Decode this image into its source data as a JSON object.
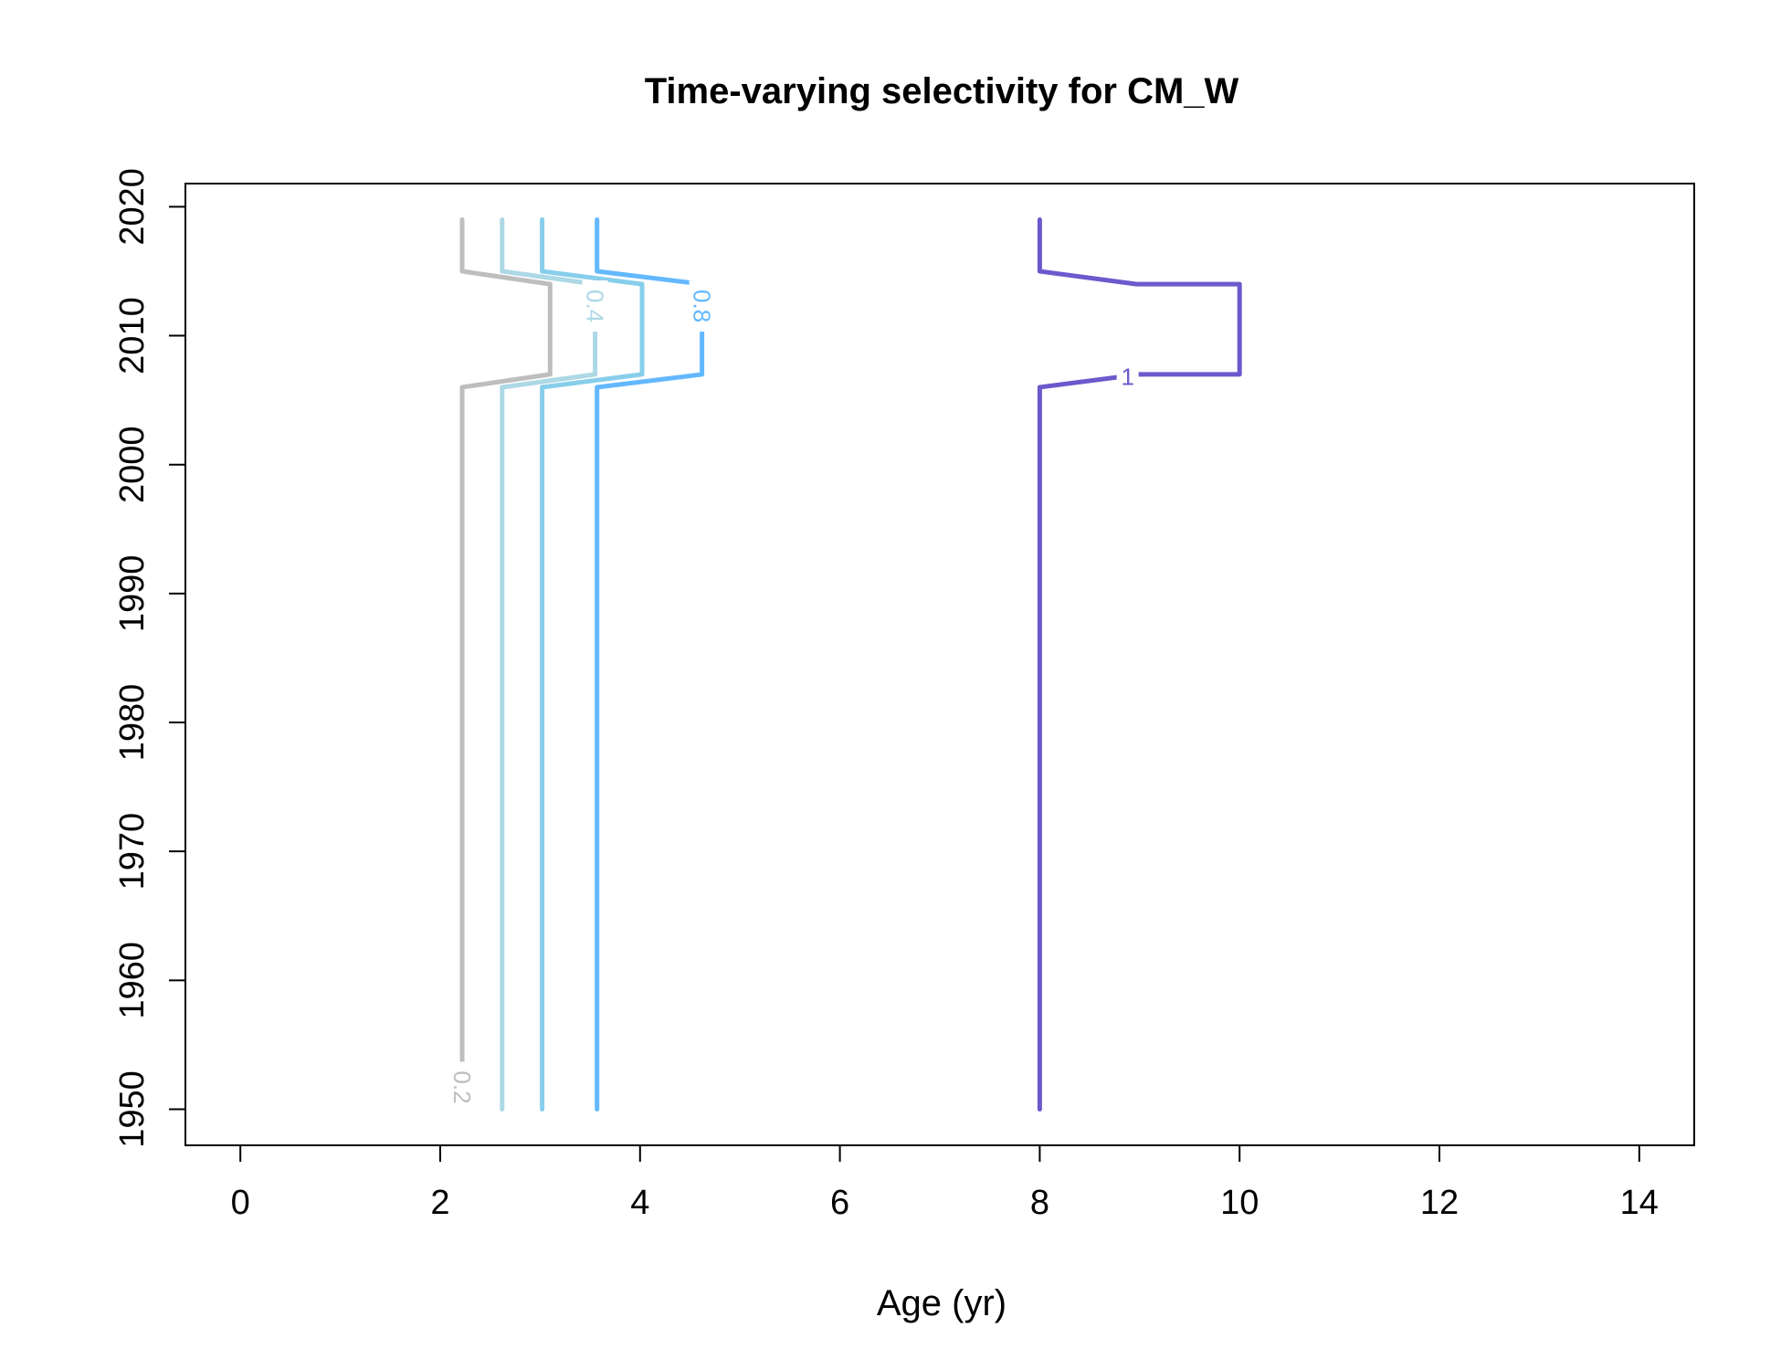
{
  "chart_data": {
    "type": "line",
    "subtype": "contour",
    "title": "Time-varying selectivity for CM_W",
    "xlabel": "Age (yr)",
    "ylabel": "",
    "xlim": [
      -0.55,
      14.55
    ],
    "ylim": [
      1947.2,
      2021.8
    ],
    "xticks": [
      0,
      2,
      4,
      6,
      8,
      10,
      12,
      14
    ],
    "yticks": [
      1950,
      1960,
      1970,
      1980,
      1990,
      2000,
      2010,
      2020
    ],
    "grid": false,
    "legend": "none",
    "series": [
      {
        "name": "0.2",
        "color": "#bebebe",
        "points": [
          [
            2.22,
            1950
          ],
          [
            2.22,
            2006
          ],
          [
            3.1,
            2007
          ],
          [
            3.1,
            2014
          ],
          [
            2.22,
            2015
          ],
          [
            2.22,
            2019
          ]
        ],
        "label_at": [
          2.22,
          1951.7
        ]
      },
      {
        "name": "0.4",
        "color": "#add8e6",
        "points": [
          [
            2.62,
            1950
          ],
          [
            2.62,
            2006
          ],
          [
            3.55,
            2007
          ],
          [
            3.55,
            2014
          ],
          [
            2.62,
            2015
          ],
          [
            2.62,
            2019
          ]
        ],
        "label_at": [
          3.55,
          2012.3
        ]
      },
      {
        "name": "",
        "color": "#87ceeb",
        "points": [
          [
            3.02,
            1950
          ],
          [
            3.02,
            2006
          ],
          [
            4.02,
            2007
          ],
          [
            4.02,
            2014
          ],
          [
            3.02,
            2015
          ],
          [
            3.02,
            2019
          ]
        ]
      },
      {
        "name": "0.8",
        "color": "#63b8ff",
        "points": [
          [
            3.57,
            1950
          ],
          [
            3.57,
            2006
          ],
          [
            4.62,
            2007
          ],
          [
            4.62,
            2014
          ],
          [
            3.57,
            2015
          ],
          [
            3.57,
            2019
          ]
        ],
        "label_at": [
          4.62,
          2012.3
        ]
      },
      {
        "name": "1",
        "color": "#6a5acd",
        "points": [
          [
            8.0,
            1950
          ],
          [
            8.0,
            2006
          ],
          [
            9.0,
            2007
          ],
          [
            10.0,
            2007
          ],
          [
            10.0,
            2014
          ],
          [
            8.97,
            2014
          ],
          [
            8.0,
            2015
          ],
          [
            8.0,
            2019
          ]
        ],
        "label_at": [
          8.88,
          2006.8
        ]
      }
    ]
  }
}
